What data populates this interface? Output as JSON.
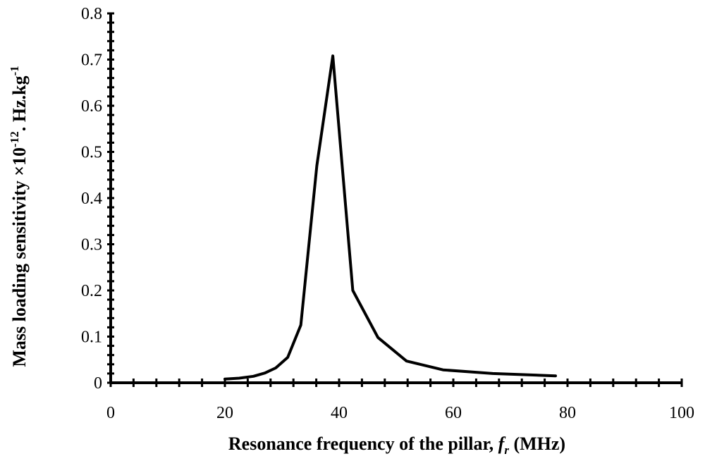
{
  "chart_data": {
    "type": "line",
    "title": "",
    "xlabel": {
      "text": "Resonance frequency of the pillar, ",
      "var": "f",
      "var_sub": "r",
      "unit": " (MHz)"
    },
    "ylabel": {
      "text": "Mass loading sensitivity   ×10",
      "exp1": "-12",
      "mid": ". Hz.kg",
      "exp2": "-1"
    },
    "xlim": [
      0,
      100
    ],
    "ylim": [
      0,
      0.8
    ],
    "xticks": [
      "0",
      "20",
      "40",
      "60",
      "80",
      "100"
    ],
    "yticks": [
      "0",
      "0.1",
      "0.2",
      "0.3",
      "0.4",
      "0.5",
      "0.6",
      "0.7",
      "0.8"
    ],
    "grid": false,
    "legend": "none",
    "series": [
      {
        "color": "#000000",
        "x": [
          20.0,
          22.5,
          25.0,
          27.0,
          28.9,
          31.0,
          33.3,
          36.1,
          38.9,
          42.4,
          46.8,
          51.8,
          58.2,
          66.9,
          77.9
        ],
        "y": [
          0.008,
          0.01,
          0.014,
          0.021,
          0.032,
          0.055,
          0.125,
          0.47,
          0.708,
          0.2,
          0.098,
          0.047,
          0.028,
          0.02,
          0.015
        ]
      }
    ]
  }
}
